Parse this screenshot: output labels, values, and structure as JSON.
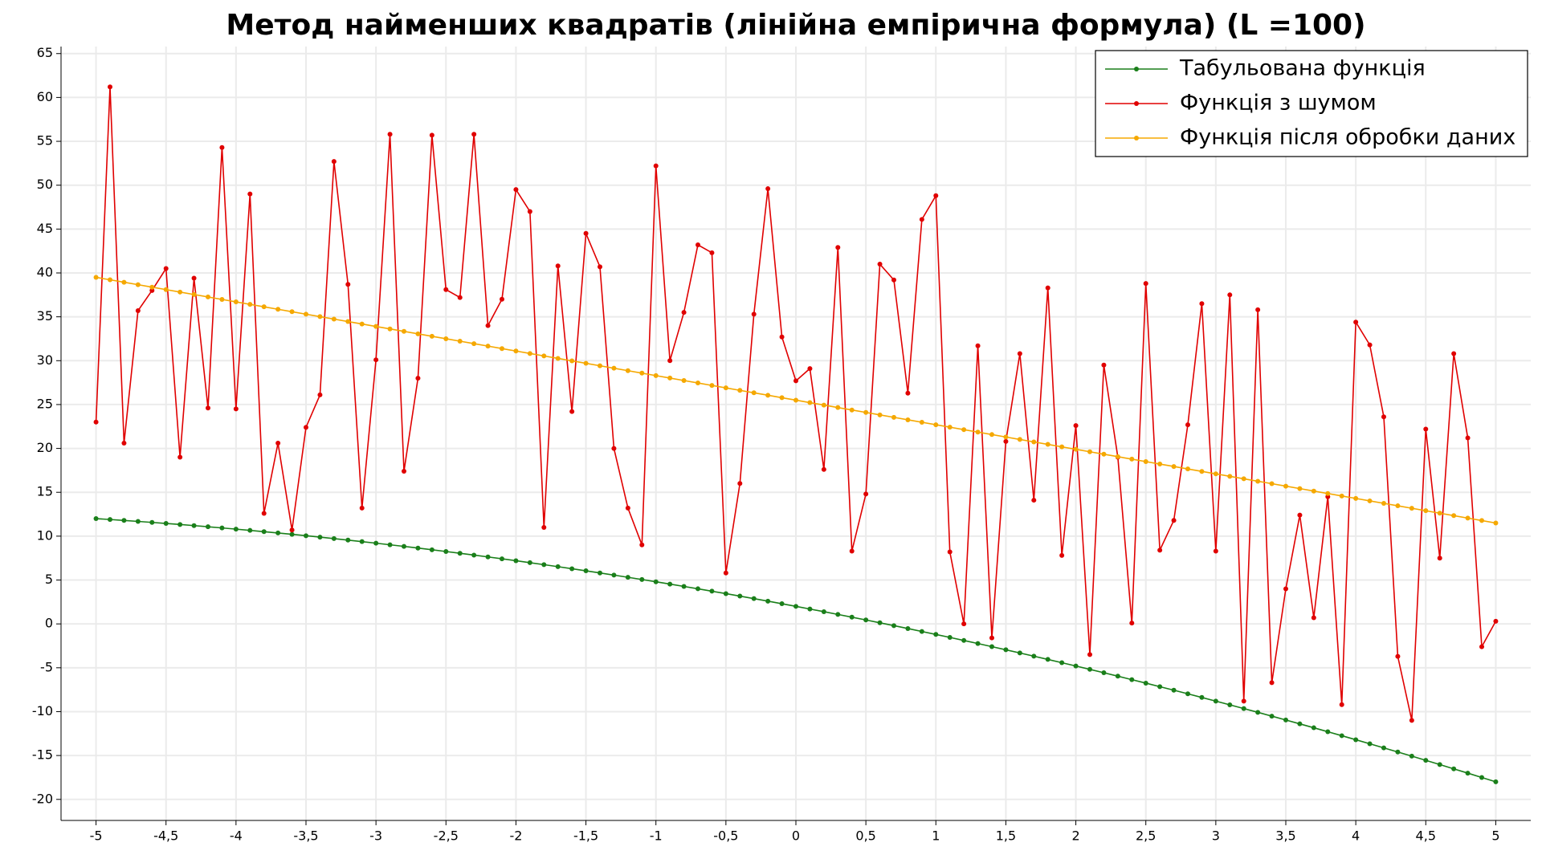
{
  "chart_data": {
    "type": "line",
    "title": "Метод найменших квадратів (лінійна емпірична формула) (L =100)",
    "x": [
      -5,
      -4.9,
      -4.8,
      -4.7,
      -4.6,
      -4.5,
      -4.4,
      -4.3,
      -4.2,
      -4.1,
      -4,
      -3.9,
      -3.8,
      -3.7,
      -3.6,
      -3.5,
      -3.4,
      -3.3,
      -3.2,
      -3.1,
      -3,
      -2.9,
      -2.8,
      -2.7,
      -2.6,
      -2.5,
      -2.4,
      -2.3,
      -2.2,
      -2.1,
      -2,
      -1.9,
      -1.8,
      -1.7,
      -1.6,
      -1.5,
      -1.4,
      -1.3,
      -1.2,
      -1.1,
      -1,
      -0.9,
      -0.8,
      -0.7,
      -0.6,
      -0.5,
      -0.4,
      -0.3,
      -0.2,
      -0.1,
      0,
      0.1,
      0.2,
      0.3,
      0.4,
      0.5,
      0.6,
      0.7,
      0.8,
      0.9,
      1,
      1.1,
      1.2,
      1.3,
      1.4,
      1.5,
      1.6,
      1.7,
      1.8,
      1.9,
      2,
      2.1,
      2.2,
      2.3,
      2.4,
      2.5,
      2.6,
      2.7,
      2.8,
      2.9,
      3,
      3.1,
      3.2,
      3.3,
      3.4,
      3.5,
      3.6,
      3.7,
      3.8,
      3.9,
      4,
      4.1,
      4.2,
      4.3,
      4.4,
      4.5,
      4.6,
      4.7,
      4.8,
      4.9,
      5
    ],
    "series": [
      {
        "name": "Табульована функція",
        "color": "#1a7f1a",
        "values": [
          12,
          11.898,
          11.792,
          11.682,
          11.568,
          11.45,
          11.328,
          11.202,
          11.072,
          10.938,
          10.8,
          10.658,
          10.512,
          10.362,
          10.208,
          10.05,
          9.888,
          9.722,
          9.552,
          9.378,
          9.2,
          9.018,
          8.832,
          8.642,
          8.448,
          8.25,
          8.048,
          7.842,
          7.632,
          7.418,
          7.2,
          6.978,
          6.752,
          6.522,
          6.288,
          6.05,
          5.808,
          5.562,
          5.312,
          5.058,
          4.8,
          4.538,
          4.272,
          4.002,
          3.728,
          3.45,
          3.168,
          2.882,
          2.592,
          2.298,
          2,
          1.698,
          1.392,
          1.082,
          0.768,
          0.45,
          0.128,
          -0.198,
          -0.528,
          -0.862,
          -1.2,
          -1.542,
          -1.888,
          -2.238,
          -2.592,
          -2.95,
          -3.312,
          -3.678,
          -4.048,
          -4.422,
          -4.8,
          -5.182,
          -5.568,
          -5.958,
          -6.352,
          -6.75,
          -7.152,
          -7.558,
          -7.968,
          -8.382,
          -8.8,
          -9.222,
          -9.648,
          -10.078,
          -10.512,
          -10.95,
          -11.392,
          -11.838,
          -12.288,
          -12.742,
          -13.2,
          -13.662,
          -14.128,
          -14.598,
          -15.072,
          -15.55,
          -16.032,
          -16.518,
          -17.008,
          -17.502,
          -18
        ]
      },
      {
        "name": "Функція з шумом",
        "color": "#e00000",
        "values": [
          23,
          61.2,
          20.6,
          35.7,
          38,
          40.5,
          19,
          39.4,
          24.6,
          54.3,
          24.5,
          49,
          12.6,
          20.6,
          10.7,
          22.4,
          26.1,
          52.7,
          38.7,
          13.2,
          30.1,
          55.8,
          17.4,
          28,
          55.7,
          38.1,
          37.2,
          55.8,
          34,
          37,
          49.5,
          47,
          11,
          40.8,
          24.2,
          44.5,
          40.7,
          20,
          13.2,
          9,
          52.2,
          30,
          35.5,
          43.2,
          42.3,
          5.8,
          16,
          35.3,
          49.6,
          32.7,
          27.7,
          29.1,
          17.6,
          42.9,
          8.3,
          14.8,
          41,
          39.2,
          26.3,
          46.1,
          48.8,
          8.2,
          0,
          31.7,
          -1.6,
          20.8,
          30.8,
          14.1,
          38.3,
          7.8,
          22.6,
          -3.5,
          29.5,
          19,
          0.1,
          38.8,
          8.4,
          11.8,
          22.7,
          36.5,
          8.3,
          37.5,
          -8.8,
          35.8,
          -6.7,
          4,
          12.4,
          0.7,
          14.5,
          -9.2,
          34.4,
          31.8,
          23.6,
          -3.7,
          -11,
          22.2,
          7.5,
          30.8,
          21.2,
          -2.6,
          0.3
        ]
      },
      {
        "name": "Функція після обробки даних",
        "color": "#f5a800",
        "values": [
          39.5,
          39.22,
          38.94,
          38.66,
          38.38,
          38.1,
          37.82,
          37.54,
          37.26,
          36.98,
          36.7,
          36.42,
          36.14,
          35.86,
          35.58,
          35.3,
          35.02,
          34.74,
          34.46,
          34.18,
          33.9,
          33.62,
          33.34,
          33.06,
          32.78,
          32.5,
          32.22,
          31.94,
          31.66,
          31.38,
          31.1,
          30.82,
          30.54,
          30.26,
          29.98,
          29.7,
          29.42,
          29.14,
          28.86,
          28.58,
          28.3,
          28.02,
          27.74,
          27.46,
          27.18,
          26.9,
          26.62,
          26.34,
          26.06,
          25.78,
          25.5,
          25.22,
          24.94,
          24.66,
          24.38,
          24.1,
          23.82,
          23.54,
          23.26,
          22.98,
          22.7,
          22.42,
          22.14,
          21.86,
          21.58,
          21.3,
          21.02,
          20.74,
          20.46,
          20.18,
          19.9,
          19.62,
          19.34,
          19.06,
          18.78,
          18.5,
          18.22,
          17.94,
          17.66,
          17.38,
          17.1,
          16.82,
          16.54,
          16.26,
          15.98,
          15.7,
          15.42,
          15.14,
          14.86,
          14.58,
          14.3,
          14.02,
          13.74,
          13.46,
          13.18,
          12.9,
          12.62,
          12.34,
          12.06,
          11.78,
          11.5
        ]
      }
    ],
    "xlim": [
      -5.25,
      5.25
    ],
    "xticks": [
      -5,
      {
        "value": -4.5,
        "label": "-4,5"
      },
      -4,
      {
        "value": -3.5,
        "label": "-3,5"
      },
      -3,
      {
        "value": -2.5,
        "label": "-2,5"
      },
      -2,
      {
        "value": -1.5,
        "label": "-1,5"
      },
      -1,
      {
        "value": -0.5,
        "label": "-0,5"
      },
      0,
      {
        "value": 0.5,
        "label": "0,5"
      },
      1,
      {
        "value": 1.5,
        "label": "1,5"
      },
      2,
      {
        "value": 2.5,
        "label": "2,5"
      },
      3,
      {
        "value": 3.5,
        "label": "3,5"
      },
      4,
      {
        "value": 4.5,
        "label": "4,5"
      },
      5
    ],
    "ylim": [
      -22.4,
      65.8
    ],
    "yticks": [
      -20,
      -15,
      -10,
      -5,
      0,
      5,
      10,
      15,
      20,
      25,
      30,
      35,
      40,
      45,
      50,
      55,
      60,
      65
    ],
    "grid": true,
    "legend": "upper right"
  }
}
